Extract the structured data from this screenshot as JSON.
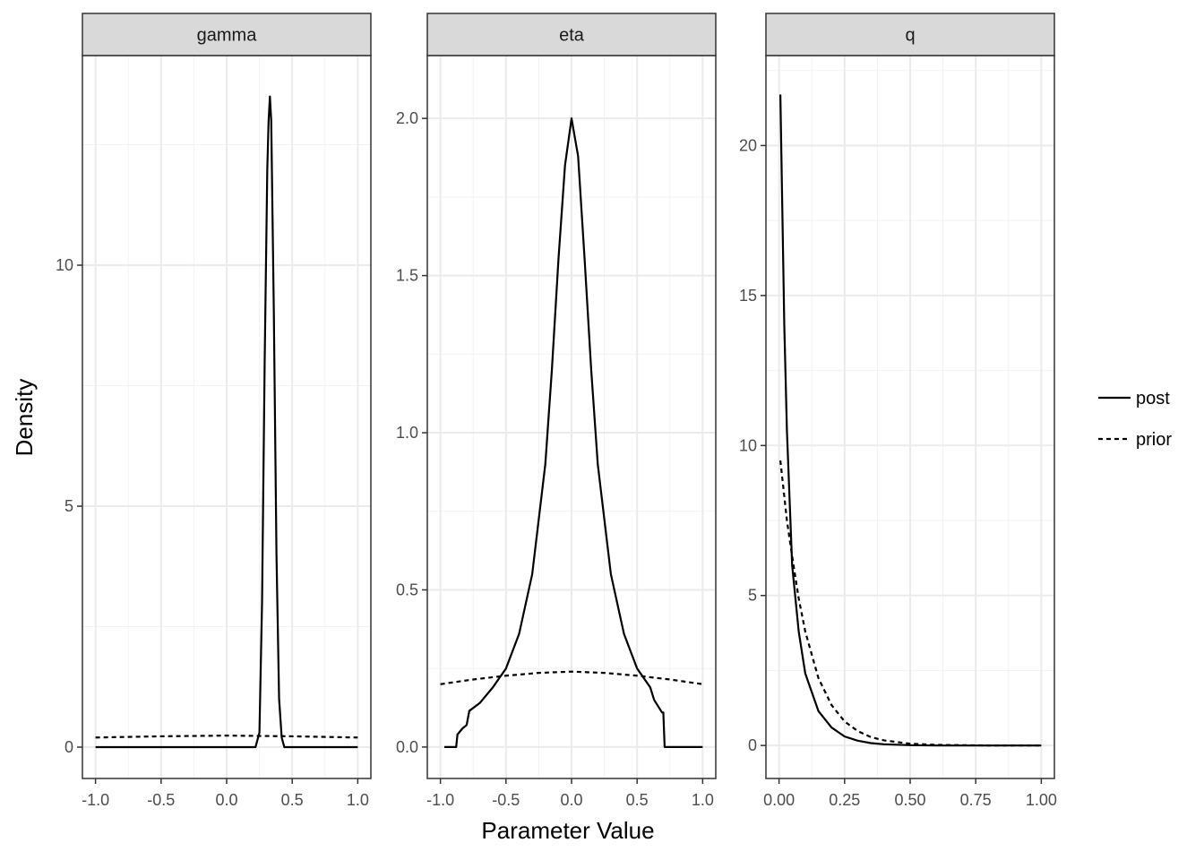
{
  "chart_data": {
    "type": "line",
    "xlabel": "Parameter Value",
    "ylabel": "Density",
    "grid": true,
    "legend": {
      "placement": "right",
      "entries": [
        {
          "name": "post",
          "linestyle": "solid"
        },
        {
          "name": "prior",
          "linestyle": "dashed"
        }
      ]
    },
    "line_color": "#000000",
    "panels": [
      {
        "name": "gamma",
        "xlim": [
          -1.1,
          1.1
        ],
        "ylim": [
          -0.65,
          14.35
        ],
        "xticks": [
          -1,
          -0.5,
          0,
          0.5,
          1
        ],
        "xtick_labels": [
          "-1.0",
          "-0.5",
          "0.0",
          "0.5",
          "1.0"
        ],
        "yticks": [
          0,
          5,
          10
        ],
        "ytick_labels": [
          "0",
          "5",
          "10"
        ],
        "series": [
          {
            "name": "post",
            "x": [
              -1.0,
              0.22,
              0.25,
              0.27,
              0.29,
              0.31,
              0.32,
              0.33,
              0.34,
              0.36,
              0.38,
              0.4,
              0.42,
              0.44,
              1.0
            ],
            "y": [
              0,
              0,
              0.3,
              3.0,
              8.0,
              12.0,
              13.0,
              13.5,
              13.0,
              9.0,
              4.0,
              1.0,
              0.2,
              0,
              0
            ]
          },
          {
            "name": "prior",
            "x": [
              -1.0,
              -0.5,
              0.0,
              0.5,
              1.0
            ],
            "y": [
              0.2,
              0.225,
              0.24,
              0.225,
              0.2
            ]
          }
        ]
      },
      {
        "name": "eta",
        "xlim": [
          -1.1,
          1.1
        ],
        "ylim": [
          -0.1,
          2.2
        ],
        "xticks": [
          -1,
          -0.5,
          0,
          0.5,
          1
        ],
        "xtick_labels": [
          "-1.0",
          "-0.5",
          "0.0",
          "0.5",
          "1.0"
        ],
        "yticks": [
          0,
          0.5,
          1.0,
          1.5,
          2.0
        ],
        "ytick_labels": [
          "0.0",
          "0.5",
          "1.0",
          "1.5",
          "2.0"
        ],
        "series": [
          {
            "name": "post",
            "x": [
              -0.97,
              -0.88,
              -0.87,
              -0.85,
              -0.83,
              -0.8,
              -0.78,
              -0.7,
              -0.6,
              -0.5,
              -0.4,
              -0.3,
              -0.2,
              -0.15,
              -0.1,
              -0.05,
              0.0,
              0.05,
              0.1,
              0.15,
              0.2,
              0.3,
              0.4,
              0.5,
              0.6,
              0.63,
              0.66,
              0.69,
              0.7,
              0.71,
              1.0
            ],
            "y": [
              0,
              0,
              0.04,
              0.05,
              0.06,
              0.07,
              0.115,
              0.14,
              0.19,
              0.25,
              0.36,
              0.55,
              0.9,
              1.2,
              1.55,
              1.85,
              2.0,
              1.88,
              1.55,
              1.2,
              0.9,
              0.55,
              0.36,
              0.25,
              0.19,
              0.15,
              0.13,
              0.11,
              0.11,
              0,
              0
            ]
          },
          {
            "name": "prior",
            "x": [
              -1.0,
              -0.75,
              -0.5,
              -0.25,
              0.0,
              0.25,
              0.5,
              0.75,
              1.0
            ],
            "y": [
              0.2,
              0.215,
              0.227,
              0.236,
              0.24,
              0.236,
              0.227,
              0.215,
              0.2
            ]
          }
        ]
      },
      {
        "name": "q",
        "xlim": [
          -0.05,
          1.05
        ],
        "ylim": [
          -1.1,
          23.0
        ],
        "xticks": [
          0,
          0.25,
          0.5,
          0.75,
          1.0
        ],
        "xtick_labels": [
          "0.00",
          "0.25",
          "0.50",
          "0.75",
          "1.00"
        ],
        "yticks": [
          0,
          5,
          10,
          15,
          20
        ],
        "ytick_labels": [
          "0",
          "5",
          "10",
          "15",
          "20"
        ],
        "series": [
          {
            "name": "post",
            "x": [
              0.005,
              0.02,
              0.03,
              0.05,
              0.075,
              0.1,
              0.15,
              0.2,
              0.25,
              0.3,
              0.35,
              0.4,
              0.5,
              0.6,
              0.8,
              1.0
            ],
            "y": [
              21.7,
              14.0,
              10.5,
              6.0,
              3.8,
              2.4,
              1.15,
              0.6,
              0.3,
              0.16,
              0.08,
              0.04,
              0.01,
              0,
              0,
              0
            ]
          },
          {
            "name": "prior",
            "x": [
              0.005,
              0.03,
              0.05,
              0.075,
              0.1,
              0.15,
              0.2,
              0.25,
              0.3,
              0.35,
              0.4,
              0.5,
              0.6,
              0.8,
              1.0
            ],
            "y": [
              9.5,
              7.5,
              6.3,
              4.9,
              3.8,
              2.25,
              1.35,
              0.8,
              0.48,
              0.28,
              0.17,
              0.06,
              0.02,
              0,
              0
            ]
          }
        ]
      }
    ]
  }
}
